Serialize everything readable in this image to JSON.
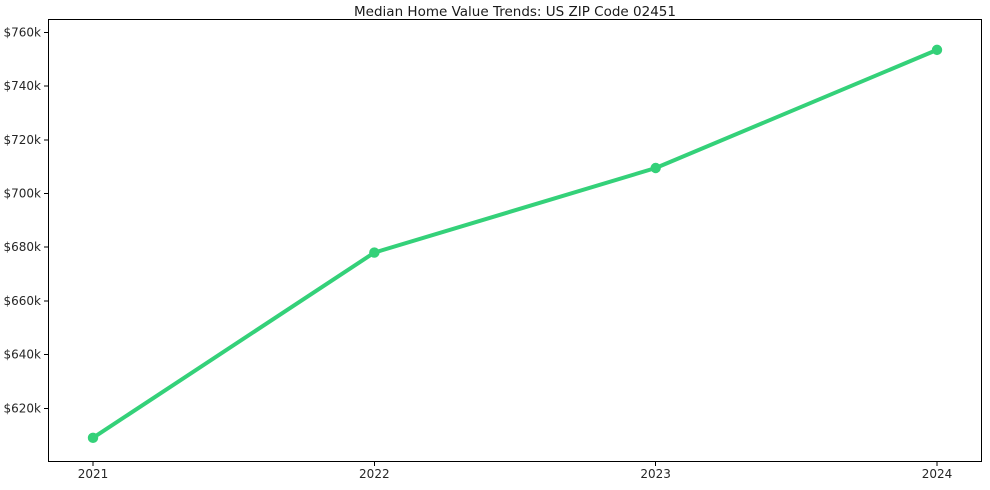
{
  "chart_data": {
    "type": "line",
    "title": "Median Home Value Trends: US ZIP Code 02451",
    "x": [
      2021,
      2022,
      2023,
      2024
    ],
    "xtick_labels": [
      "2021",
      "2022",
      "2023",
      "2024"
    ],
    "values": [
      609000,
      678000,
      709500,
      753500
    ],
    "ytick_values": [
      620000,
      640000,
      660000,
      680000,
      700000,
      720000,
      740000,
      760000
    ],
    "ytick_labels": [
      "$620k",
      "$640k",
      "$660k",
      "$680k",
      "$700k",
      "$720k",
      "$740k",
      "$760k"
    ],
    "ylim": [
      600000,
      765000
    ],
    "xlabel": "",
    "ylabel": "",
    "grid": false,
    "legend": "none",
    "line_color": "#34d179",
    "marker": "circle",
    "spine_color": "#000000"
  }
}
